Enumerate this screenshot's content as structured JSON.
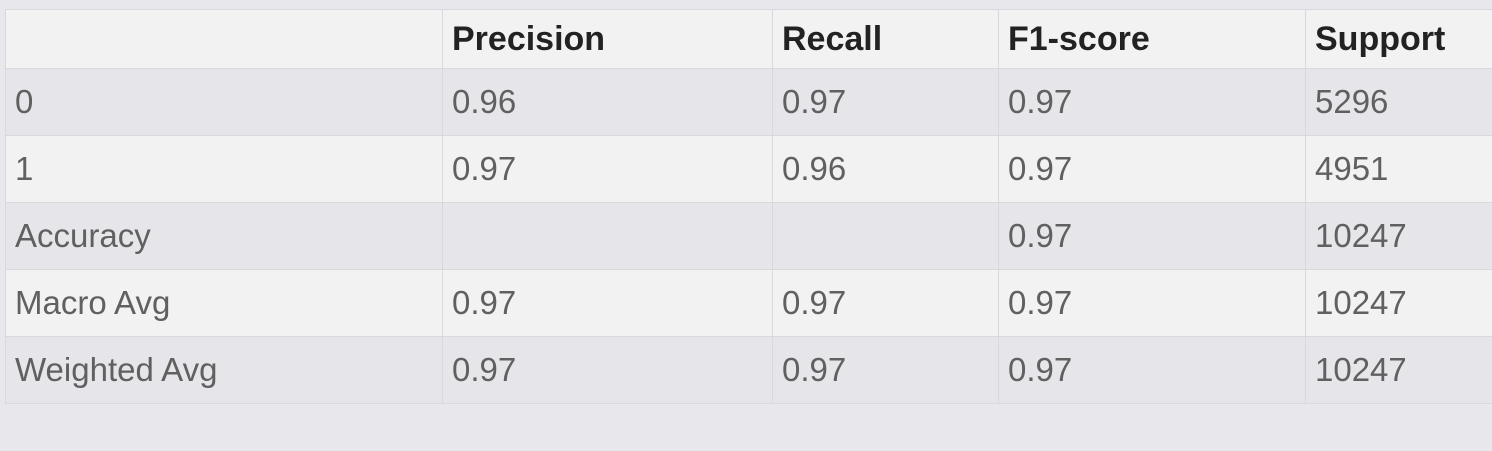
{
  "table": {
    "columns": [
      "",
      "Precision",
      "Recall",
      "F1-score",
      "Support"
    ],
    "rows": [
      [
        "0",
        "0.96",
        "0.97",
        "0.97",
        "5296"
      ],
      [
        "1",
        "0.97",
        "0.96",
        "0.97",
        "4951"
      ],
      [
        "Accuracy",
        "",
        "",
        "0.97",
        "10247"
      ],
      [
        "Macro Avg",
        "0.97",
        "0.97",
        "0.97",
        "10247"
      ],
      [
        "Weighted Avg",
        "0.97",
        "0.97",
        "0.97",
        "10247"
      ]
    ]
  },
  "colors": {
    "page_background": "#e8e8ec",
    "header_background": "#f2f2f2",
    "row_odd_background": "#e6e6ea",
    "row_even_background": "#f2f2f2",
    "header_text": "#222222",
    "cell_text": "#606060",
    "border": "#d9d9dd"
  }
}
